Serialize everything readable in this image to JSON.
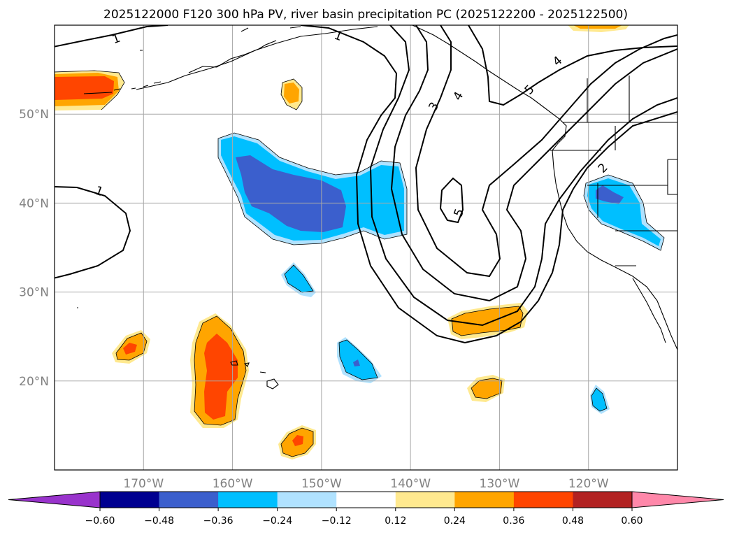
{
  "chart_data": {
    "type": "map",
    "title": "2025122000 F120 300 hPa PV, river basin precipitation PC (2025122200 - 2025122500)",
    "lon_range": [
      -180,
      -110
    ],
    "lat_range": [
      10,
      60
    ],
    "x_ticks": [
      {
        "value": -170,
        "label": "170°W"
      },
      {
        "value": -160,
        "label": "160°W"
      },
      {
        "value": -150,
        "label": "150°W"
      },
      {
        "value": -140,
        "label": "140°W"
      },
      {
        "value": -130,
        "label": "130°W"
      },
      {
        "value": -120,
        "label": "120°W"
      }
    ],
    "y_ticks": [
      {
        "value": 20,
        "label": "20°N"
      },
      {
        "value": 30,
        "label": "30°N"
      },
      {
        "value": 40,
        "label": "40°N"
      },
      {
        "value": 50,
        "label": "50°N"
      }
    ],
    "grid": true,
    "colorbar": {
      "boundaries": [
        -0.6,
        -0.48,
        -0.36,
        -0.24,
        -0.12,
        0.12,
        0.24,
        0.36,
        0.48,
        0.6
      ],
      "labels": [
        "−0.60",
        "−0.48",
        "−0.36",
        "−0.24",
        "−0.12",
        "0.12",
        "0.24",
        "0.36",
        "0.48",
        "0.60"
      ],
      "colors": [
        "#9933cc",
        "#000090",
        "#3b5fcd",
        "#00bfff",
        "#b0e2ff",
        "#ffffff",
        "#ffe98f",
        "#ffa500",
        "#ff4500",
        "#b22222",
        "#ff88aa"
      ],
      "extend": "both"
    },
    "pv_contour_labels": [
      "1",
      "1",
      "1",
      "2",
      "3",
      "4",
      "4",
      "5",
      "5"
    ],
    "precip_anomalies": [
      {
        "name": "north-pacific-west-positive",
        "lon": -177,
        "lat": 52.5,
        "peak": 0.42
      },
      {
        "name": "gulf-alaska-small-positive",
        "lon": -154,
        "lat": 52,
        "peak": 0.3
      },
      {
        "name": "central-pacific-negative",
        "lon": -151,
        "lat": 40,
        "peak": -0.45
      },
      {
        "name": "central-pacific-negative-east",
        "lon": -143.5,
        "lat": 40,
        "peak": -0.33
      },
      {
        "name": "california-negative",
        "lon": -117,
        "lat": 40,
        "peak": -0.4
      },
      {
        "name": "mid-pacific-small-negative",
        "lon": -153.5,
        "lat": 31.5,
        "peak": -0.3
      },
      {
        "name": "subtropical-negative",
        "lon": -145.5,
        "lat": 22,
        "peak": -0.35
      },
      {
        "name": "subtropical-positive-east",
        "lon": -131,
        "lat": 26.5,
        "peak": 0.32
      },
      {
        "name": "hawaii-positive",
        "lon": -161.5,
        "lat": 20.5,
        "peak": 0.42
      },
      {
        "name": "west-subtropical-positive",
        "lon": -172,
        "lat": 23.5,
        "peak": 0.38
      },
      {
        "name": "south-positive",
        "lon": -153.5,
        "lat": 13,
        "peak": 0.37
      },
      {
        "name": "east-subtropical-positive",
        "lon": -130,
        "lat": 19,
        "peak": 0.3
      },
      {
        "name": "mexico-small-negative",
        "lon": -118.5,
        "lat": 16.8,
        "peak": -0.28
      }
    ]
  }
}
